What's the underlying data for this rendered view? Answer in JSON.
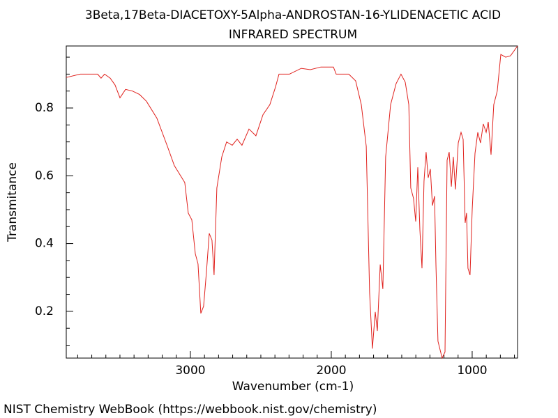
{
  "chart_data": {
    "type": "line",
    "title": "3Beta,17Beta-DIACETOXY-5Alpha-ANDROSTAN-16-YLIDENACETIC ACID",
    "subtitle": "INFRARED SPECTRUM",
    "x_label": "Wavenumber (cm-1)",
    "y_label": "Transmitance",
    "source": "NIST Chemistry WebBook (https://webbook.nist.gov/chemistry)",
    "color": "#e0201c",
    "xlim": [
      3881,
      678
    ],
    "ylim": [
      0.062,
      0.983
    ],
    "xticks": [
      3000,
      2000,
      1000
    ],
    "yticks": [
      0.2,
      0.4,
      0.6,
      0.8
    ],
    "xminorticks": [
      3800,
      3700,
      3600,
      3500,
      3400,
      3300,
      3200,
      3100,
      2900,
      2800,
      2700,
      2600,
      2500,
      2400,
      2300,
      2200,
      2100,
      1900,
      1800,
      1700,
      1600,
      1500,
      1400,
      1300,
      1200,
      1100,
      900,
      800,
      700
    ],
    "yminorticks": [
      0.1,
      0.15,
      0.25,
      0.3,
      0.35,
      0.45,
      0.5,
      0.55,
      0.65,
      0.7,
      0.75,
      0.85,
      0.9,
      0.95
    ],
    "x": [
      3881,
      3782,
      3658,
      3634,
      3609,
      3569,
      3535,
      3500,
      3460,
      3411,
      3361,
      3312,
      3238,
      3163,
      3114,
      3040,
      3015,
      2990,
      2965,
      2946,
      2926,
      2906,
      2886,
      2866,
      2847,
      2832,
      2812,
      2777,
      2743,
      2703,
      2668,
      2634,
      2584,
      2535,
      2485,
      2436,
      2396,
      2371,
      2297,
      2213,
      2149,
      2074,
      1985,
      1965,
      1876,
      1827,
      1787,
      1752,
      1728,
      1708,
      1688,
      1673,
      1653,
      1634,
      1614,
      1579,
      1540,
      1505,
      1475,
      1450,
      1436,
      1416,
      1401,
      1386,
      1371,
      1356,
      1342,
      1327,
      1312,
      1297,
      1282,
      1267,
      1257,
      1243,
      1213,
      1193,
      1178,
      1163,
      1148,
      1134,
      1119,
      1099,
      1079,
      1064,
      1050,
      1040,
      1030,
      1015,
      1000,
      980,
      960,
      941,
      921,
      901,
      886,
      866,
      847,
      822,
      797,
      762,
      728,
      678
    ],
    "values": [
      0.89,
      0.9,
      0.9,
      0.888,
      0.9,
      0.888,
      0.868,
      0.83,
      0.855,
      0.85,
      0.84,
      0.82,
      0.77,
      0.687,
      0.63,
      0.58,
      0.49,
      0.47,
      0.37,
      0.34,
      0.194,
      0.215,
      0.317,
      0.43,
      0.41,
      0.307,
      0.564,
      0.656,
      0.7,
      0.69,
      0.708,
      0.69,
      0.738,
      0.718,
      0.78,
      0.81,
      0.862,
      0.9,
      0.9,
      0.917,
      0.913,
      0.921,
      0.921,
      0.9,
      0.9,
      0.88,
      0.81,
      0.687,
      0.255,
      0.09,
      0.198,
      0.142,
      0.338,
      0.266,
      0.656,
      0.81,
      0.872,
      0.9,
      0.876,
      0.81,
      0.564,
      0.533,
      0.465,
      0.625,
      0.44,
      0.327,
      0.584,
      0.67,
      0.594,
      0.62,
      0.512,
      0.54,
      0.338,
      0.112,
      0.062,
      0.08,
      0.646,
      0.67,
      0.568,
      0.656,
      0.56,
      0.697,
      0.728,
      0.708,
      0.461,
      0.49,
      0.327,
      0.307,
      0.5,
      0.666,
      0.728,
      0.697,
      0.753,
      0.728,
      0.759,
      0.662,
      0.81,
      0.85,
      0.958,
      0.95,
      0.954,
      0.983
    ]
  }
}
